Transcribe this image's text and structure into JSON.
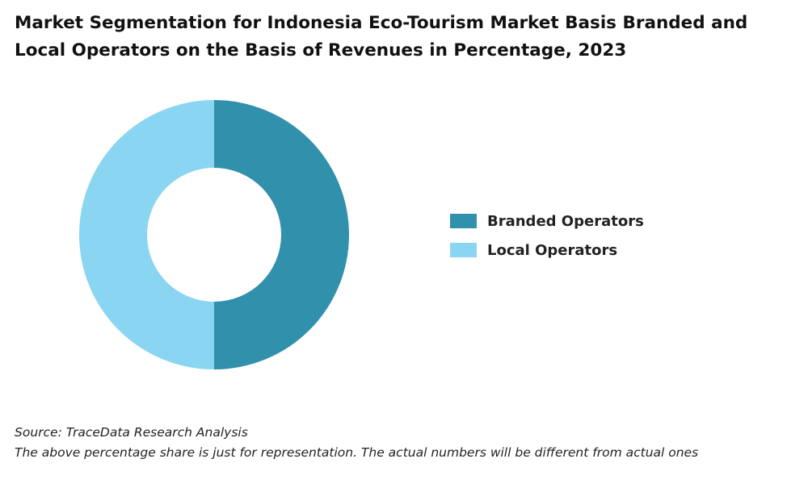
{
  "chart_data": {
    "type": "donut",
    "title": "Market Segmentation for Indonesia Eco-Tourism Market Basis Branded and Local Operators on the Basis of Revenues in Percentage, 2023",
    "categories": [
      "Branded Operators",
      "Local Operators"
    ],
    "values": [
      50,
      50
    ],
    "colors": [
      "#3190ab",
      "#89d5f2"
    ],
    "legend": "right",
    "source": "Source: TraceData Research Analysis",
    "note": "The above percentage share is just for representation. The actual numbers will be different from actual ones"
  }
}
